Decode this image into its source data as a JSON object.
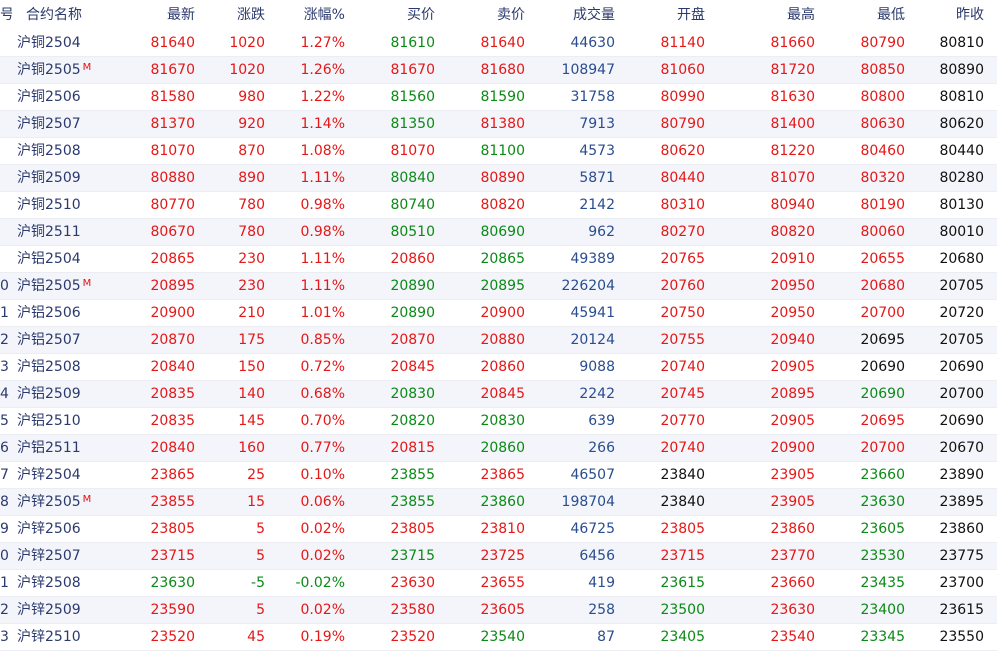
{
  "colors": {
    "up": "#e51717",
    "down": "#0b8a16",
    "flat": "#111111",
    "volume": "#2a4d8f",
    "name": "#2b3a6e"
  },
  "columns": {
    "idx": "号",
    "name": "合约名称",
    "last": "最新",
    "change": "涨跌",
    "pct": "涨幅%",
    "bid": "买价",
    "ask": "卖价",
    "volume": "成交量",
    "open": "开盘",
    "high": "最高",
    "low": "最低",
    "prev": "昨收"
  },
  "rows": [
    {
      "idx": "",
      "name": "沪铜2504",
      "main": "",
      "last": "81640",
      "change": "1020",
      "pct": "1.27%",
      "bid": "81610",
      "ask": "81640",
      "volume": "44630",
      "open": "81140",
      "high": "81660",
      "low": "80790",
      "prev": "80810",
      "c": {
        "last": "red",
        "change": "red",
        "pct": "red",
        "bid": "green",
        "ask": "red",
        "open": "red",
        "high": "red",
        "low": "red"
      }
    },
    {
      "idx": "",
      "name": "沪铜2505",
      "main": "M",
      "last": "81670",
      "change": "1020",
      "pct": "1.26%",
      "bid": "81670",
      "ask": "81680",
      "volume": "108947",
      "open": "81060",
      "high": "81720",
      "low": "80850",
      "prev": "80890",
      "c": {
        "last": "red",
        "change": "red",
        "pct": "red",
        "bid": "red",
        "ask": "red",
        "open": "red",
        "high": "red",
        "low": "red"
      }
    },
    {
      "idx": "",
      "name": "沪铜2506",
      "main": "",
      "last": "81580",
      "change": "980",
      "pct": "1.22%",
      "bid": "81560",
      "ask": "81590",
      "volume": "31758",
      "open": "80990",
      "high": "81630",
      "low": "80800",
      "prev": "80810",
      "c": {
        "last": "red",
        "change": "red",
        "pct": "red",
        "bid": "green",
        "ask": "green",
        "open": "red",
        "high": "red",
        "low": "red"
      }
    },
    {
      "idx": "",
      "name": "沪铜2507",
      "main": "",
      "last": "81370",
      "change": "920",
      "pct": "1.14%",
      "bid": "81350",
      "ask": "81380",
      "volume": "7913",
      "open": "80790",
      "high": "81400",
      "low": "80630",
      "prev": "80620",
      "c": {
        "last": "red",
        "change": "red",
        "pct": "red",
        "bid": "green",
        "ask": "red",
        "open": "red",
        "high": "red",
        "low": "red"
      }
    },
    {
      "idx": "",
      "name": "沪铜2508",
      "main": "",
      "last": "81070",
      "change": "870",
      "pct": "1.08%",
      "bid": "81070",
      "ask": "81100",
      "volume": "4573",
      "open": "80620",
      "high": "81220",
      "low": "80460",
      "prev": "80440",
      "c": {
        "last": "red",
        "change": "red",
        "pct": "red",
        "bid": "red",
        "ask": "green",
        "open": "red",
        "high": "red",
        "low": "red"
      }
    },
    {
      "idx": "",
      "name": "沪铜2509",
      "main": "",
      "last": "80880",
      "change": "890",
      "pct": "1.11%",
      "bid": "80840",
      "ask": "80890",
      "volume": "5871",
      "open": "80440",
      "high": "81070",
      "low": "80320",
      "prev": "80280",
      "c": {
        "last": "red",
        "change": "red",
        "pct": "red",
        "bid": "green",
        "ask": "red",
        "open": "red",
        "high": "red",
        "low": "red"
      }
    },
    {
      "idx": "",
      "name": "沪铜2510",
      "main": "",
      "last": "80770",
      "change": "780",
      "pct": "0.98%",
      "bid": "80740",
      "ask": "80820",
      "volume": "2142",
      "open": "80310",
      "high": "80940",
      "low": "80190",
      "prev": "80130",
      "c": {
        "last": "red",
        "change": "red",
        "pct": "red",
        "bid": "green",
        "ask": "red",
        "open": "red",
        "high": "red",
        "low": "red"
      }
    },
    {
      "idx": "",
      "name": "沪铜2511",
      "main": "",
      "last": "80670",
      "change": "780",
      "pct": "0.98%",
      "bid": "80510",
      "ask": "80690",
      "volume": "962",
      "open": "80270",
      "high": "80820",
      "low": "80060",
      "prev": "80010",
      "c": {
        "last": "red",
        "change": "red",
        "pct": "red",
        "bid": "green",
        "ask": "green",
        "open": "red",
        "high": "red",
        "low": "red"
      }
    },
    {
      "idx": "",
      "name": "沪铝2504",
      "main": "",
      "last": "20865",
      "change": "230",
      "pct": "1.11%",
      "bid": "20860",
      "ask": "20865",
      "volume": "49389",
      "open": "20765",
      "high": "20910",
      "low": "20655",
      "prev": "20680",
      "c": {
        "last": "red",
        "change": "red",
        "pct": "red",
        "bid": "red",
        "ask": "green",
        "open": "red",
        "high": "red",
        "low": "red"
      }
    },
    {
      "idx": "0",
      "name": "沪铝2505",
      "main": "M",
      "last": "20895",
      "change": "230",
      "pct": "1.11%",
      "bid": "20890",
      "ask": "20895",
      "volume": "226204",
      "open": "20760",
      "high": "20950",
      "low": "20680",
      "prev": "20705",
      "c": {
        "last": "red",
        "change": "red",
        "pct": "red",
        "bid": "green",
        "ask": "green",
        "open": "red",
        "high": "red",
        "low": "red"
      }
    },
    {
      "idx": "1",
      "name": "沪铝2506",
      "main": "",
      "last": "20900",
      "change": "210",
      "pct": "1.01%",
      "bid": "20890",
      "ask": "20900",
      "volume": "45941",
      "open": "20750",
      "high": "20950",
      "low": "20700",
      "prev": "20720",
      "c": {
        "last": "red",
        "change": "red",
        "pct": "red",
        "bid": "green",
        "ask": "red",
        "open": "red",
        "high": "red",
        "low": "red"
      }
    },
    {
      "idx": "2",
      "name": "沪铝2507",
      "main": "",
      "last": "20870",
      "change": "175",
      "pct": "0.85%",
      "bid": "20870",
      "ask": "20880",
      "volume": "20124",
      "open": "20755",
      "high": "20940",
      "low": "20695",
      "prev": "20705",
      "c": {
        "last": "red",
        "change": "red",
        "pct": "red",
        "bid": "red",
        "ask": "red",
        "open": "red",
        "high": "red",
        "low": "black"
      }
    },
    {
      "idx": "3",
      "name": "沪铝2508",
      "main": "",
      "last": "20840",
      "change": "150",
      "pct": "0.72%",
      "bid": "20845",
      "ask": "20860",
      "volume": "9088",
      "open": "20740",
      "high": "20905",
      "low": "20690",
      "prev": "20690",
      "c": {
        "last": "red",
        "change": "red",
        "pct": "red",
        "bid": "red",
        "ask": "red",
        "open": "red",
        "high": "red",
        "low": "black"
      }
    },
    {
      "idx": "4",
      "name": "沪铝2509",
      "main": "",
      "last": "20835",
      "change": "140",
      "pct": "0.68%",
      "bid": "20830",
      "ask": "20845",
      "volume": "2242",
      "open": "20745",
      "high": "20895",
      "low": "20690",
      "prev": "20700",
      "c": {
        "last": "red",
        "change": "red",
        "pct": "red",
        "bid": "green",
        "ask": "red",
        "open": "red",
        "high": "red",
        "low": "green"
      }
    },
    {
      "idx": "5",
      "name": "沪铝2510",
      "main": "",
      "last": "20835",
      "change": "145",
      "pct": "0.70%",
      "bid": "20820",
      "ask": "20830",
      "volume": "639",
      "open": "20770",
      "high": "20905",
      "low": "20695",
      "prev": "20690",
      "c": {
        "last": "red",
        "change": "red",
        "pct": "red",
        "bid": "green",
        "ask": "green",
        "open": "red",
        "high": "red",
        "low": "red"
      }
    },
    {
      "idx": "6",
      "name": "沪铝2511",
      "main": "",
      "last": "20840",
      "change": "160",
      "pct": "0.77%",
      "bid": "20815",
      "ask": "20860",
      "volume": "266",
      "open": "20740",
      "high": "20900",
      "low": "20700",
      "prev": "20670",
      "c": {
        "last": "red",
        "change": "red",
        "pct": "red",
        "bid": "red",
        "ask": "green",
        "open": "red",
        "high": "red",
        "low": "red"
      }
    },
    {
      "idx": "7",
      "name": "沪锌2504",
      "main": "",
      "last": "23865",
      "change": "25",
      "pct": "0.10%",
      "bid": "23855",
      "ask": "23865",
      "volume": "46507",
      "open": "23840",
      "high": "23905",
      "low": "23660",
      "prev": "23890",
      "c": {
        "last": "red",
        "change": "red",
        "pct": "red",
        "bid": "green",
        "ask": "red",
        "open": "black",
        "high": "red",
        "low": "green"
      }
    },
    {
      "idx": "8",
      "name": "沪锌2505",
      "main": "M",
      "last": "23855",
      "change": "15",
      "pct": "0.06%",
      "bid": "23855",
      "ask": "23860",
      "volume": "198704",
      "open": "23840",
      "high": "23905",
      "low": "23630",
      "prev": "23895",
      "c": {
        "last": "red",
        "change": "red",
        "pct": "red",
        "bid": "green",
        "ask": "green",
        "open": "black",
        "high": "red",
        "low": "green"
      }
    },
    {
      "idx": "9",
      "name": "沪锌2506",
      "main": "",
      "last": "23805",
      "change": "5",
      "pct": "0.02%",
      "bid": "23805",
      "ask": "23810",
      "volume": "46725",
      "open": "23805",
      "high": "23860",
      "low": "23605",
      "prev": "23860",
      "c": {
        "last": "red",
        "change": "red",
        "pct": "red",
        "bid": "red",
        "ask": "red",
        "open": "red",
        "high": "red",
        "low": "green"
      }
    },
    {
      "idx": "0",
      "name": "沪锌2507",
      "main": "",
      "last": "23715",
      "change": "5",
      "pct": "0.02%",
      "bid": "23715",
      "ask": "23725",
      "volume": "6456",
      "open": "23715",
      "high": "23770",
      "low": "23530",
      "prev": "23775",
      "c": {
        "last": "red",
        "change": "red",
        "pct": "red",
        "bid": "green",
        "ask": "red",
        "open": "red",
        "high": "red",
        "low": "green"
      }
    },
    {
      "idx": "1",
      "name": "沪锌2508",
      "main": "",
      "last": "23630",
      "change": "-5",
      "pct": "-0.02%",
      "bid": "23630",
      "ask": "23655",
      "volume": "419",
      "open": "23615",
      "high": "23660",
      "low": "23435",
      "prev": "23700",
      "c": {
        "last": "green",
        "change": "green",
        "pct": "green",
        "bid": "red",
        "ask": "red",
        "open": "green",
        "high": "red",
        "low": "green"
      }
    },
    {
      "idx": "2",
      "name": "沪锌2509",
      "main": "",
      "last": "23590",
      "change": "5",
      "pct": "0.02%",
      "bid": "23580",
      "ask": "23605",
      "volume": "258",
      "open": "23500",
      "high": "23630",
      "low": "23400",
      "prev": "23615",
      "c": {
        "last": "red",
        "change": "red",
        "pct": "red",
        "bid": "red",
        "ask": "red",
        "open": "green",
        "high": "red",
        "low": "green"
      }
    },
    {
      "idx": "3",
      "name": "沪锌2510",
      "main": "",
      "last": "23520",
      "change": "45",
      "pct": "0.19%",
      "bid": "23520",
      "ask": "23540",
      "volume": "87",
      "open": "23405",
      "high": "23540",
      "low": "23345",
      "prev": "23550",
      "c": {
        "last": "red",
        "change": "red",
        "pct": "red",
        "bid": "red",
        "ask": "green",
        "open": "green",
        "high": "red",
        "low": "green"
      }
    }
  ]
}
